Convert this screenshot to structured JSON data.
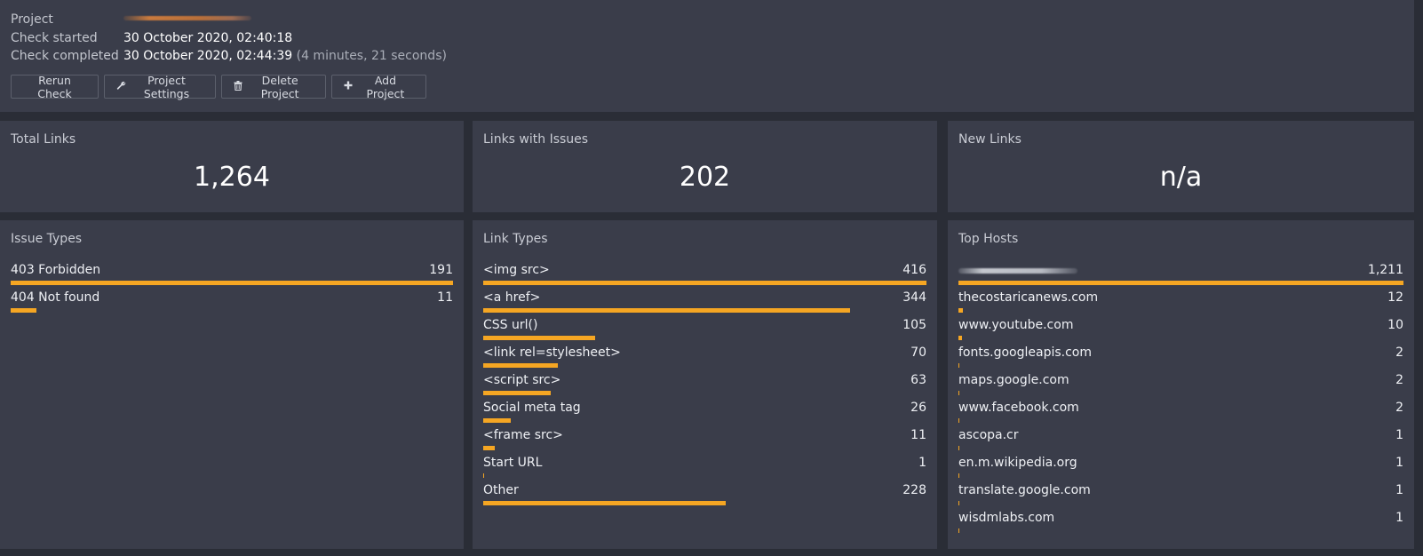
{
  "header": {
    "project_label": "Project",
    "check_started_label": "Check started",
    "check_started_value": "30 October 2020, 02:40:18",
    "check_completed_label": "Check completed",
    "check_completed_value": "30 October 2020, 02:44:39",
    "check_duration": "(4 minutes, 21 seconds)",
    "buttons": {
      "rerun": "Rerun Check",
      "settings": "Project Settings",
      "delete": "Delete Project",
      "add": "Add Project"
    }
  },
  "stats": {
    "total_links": {
      "title": "Total Links",
      "value": "1,264"
    },
    "links_with_issues": {
      "title": "Links with Issues",
      "value": "202"
    },
    "new_links": {
      "title": "New Links",
      "value": "n/a"
    }
  },
  "issue_types": {
    "title": "Issue Types",
    "max": 191,
    "rows": [
      {
        "label": "403 Forbidden",
        "count": 191
      },
      {
        "label": "404 Not found",
        "count": 11
      }
    ]
  },
  "link_types": {
    "title": "Link Types",
    "max": 416,
    "rows": [
      {
        "label": "<img src>",
        "count": 416
      },
      {
        "label": "<a href>",
        "count": 344
      },
      {
        "label": "CSS url()",
        "count": 105
      },
      {
        "label": "<link rel=stylesheet>",
        "count": 70
      },
      {
        "label": "<script src>",
        "count": 63
      },
      {
        "label": "Social meta tag",
        "count": 26
      },
      {
        "label": "<frame src>",
        "count": 11
      },
      {
        "label": "Start URL",
        "count": 1
      },
      {
        "label": "Other",
        "count": 228
      }
    ]
  },
  "top_hosts": {
    "title": "Top Hosts",
    "max": 1211,
    "rows": [
      {
        "label": "",
        "redacted": true,
        "count": "1,211",
        "value": 1211
      },
      {
        "label": "thecostaricanews.com",
        "count": "12",
        "value": 12
      },
      {
        "label": "www.youtube.com",
        "count": "10",
        "value": 10
      },
      {
        "label": "fonts.googleapis.com",
        "count": "2",
        "value": 2
      },
      {
        "label": "maps.google.com",
        "count": "2",
        "value": 2
      },
      {
        "label": "www.facebook.com",
        "count": "2",
        "value": 2
      },
      {
        "label": "ascopa.cr",
        "count": "1",
        "value": 1
      },
      {
        "label": "en.m.wikipedia.org",
        "count": "1",
        "value": 1
      },
      {
        "label": "translate.google.com",
        "count": "1",
        "value": 1
      },
      {
        "label": "wisdmlabs.com",
        "count": "1",
        "value": 1
      }
    ]
  },
  "colors": {
    "bar": "#f5a623",
    "panel": "#3a3d4a",
    "background": "#2a2d36"
  }
}
